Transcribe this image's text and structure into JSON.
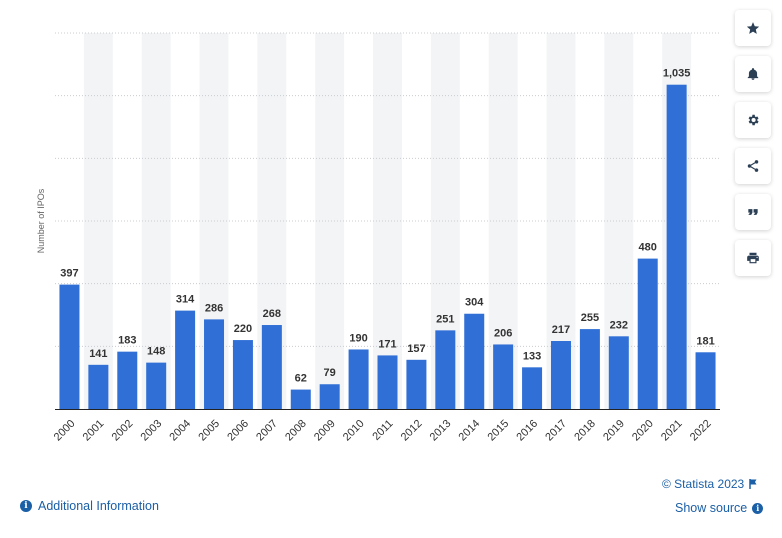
{
  "chart_data": {
    "type": "bar",
    "categories": [
      "2000",
      "2001",
      "2002",
      "2003",
      "2004",
      "2005",
      "2006",
      "2007",
      "2008",
      "2009",
      "2010",
      "2011",
      "2012",
      "2013",
      "2014",
      "2015",
      "2016",
      "2017",
      "2018",
      "2019",
      "2020",
      "2021",
      "2022"
    ],
    "values": [
      397,
      141,
      183,
      148,
      314,
      286,
      220,
      268,
      62,
      79,
      190,
      171,
      157,
      251,
      304,
      206,
      133,
      217,
      255,
      232,
      480,
      1035,
      181
    ],
    "data_labels": [
      "397",
      "141",
      "183",
      "148",
      "314",
      "286",
      "220",
      "268",
      "62",
      "79",
      "190",
      "171",
      "157",
      "251",
      "304",
      "206",
      "133",
      "217",
      "255",
      "232",
      "480",
      "1,035",
      "181"
    ],
    "ylabel": "Number of IPOs",
    "ylim": [
      0,
      1200
    ],
    "y_gridlines": [
      200,
      400,
      600,
      800,
      1000,
      1200
    ],
    "y_tick_labels_shown": false,
    "grid": true,
    "bar_color": "#2f6fd6",
    "alternate_band_color": "#f3f4f6"
  },
  "toolbar": {
    "buttons": [
      {
        "icon": "star-icon"
      },
      {
        "icon": "bell-icon"
      },
      {
        "icon": "gear-icon"
      },
      {
        "icon": "share-icon"
      },
      {
        "icon": "quote-icon"
      },
      {
        "icon": "print-icon"
      }
    ]
  },
  "footer": {
    "additional_info": "Additional Information",
    "credit": "© Statista 2023",
    "show_source": "Show source"
  },
  "colors": {
    "link": "#1b5fa6",
    "bar": "#2f6fd6"
  }
}
